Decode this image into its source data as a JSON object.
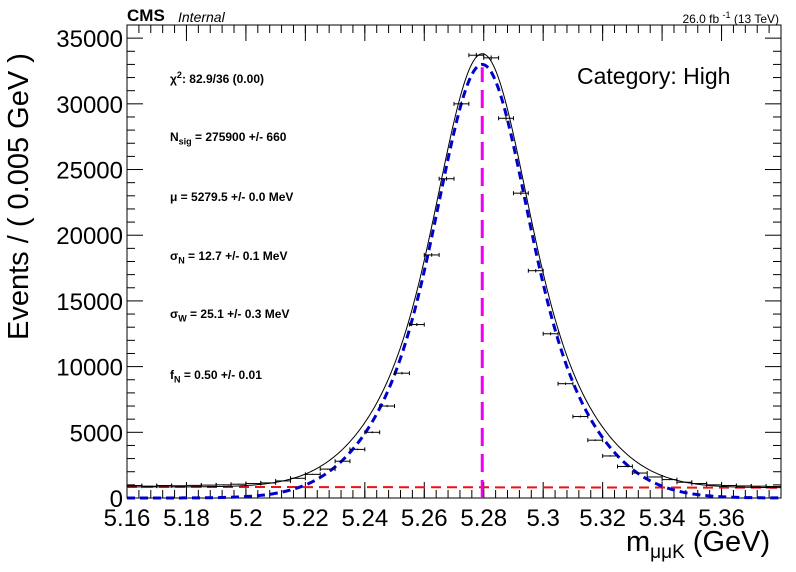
{
  "header": {
    "experiment": "CMS",
    "status": "Internal",
    "luminosity": "26.0 fb",
    "luminosity_exp": "-1",
    "energy": "(13 TeV)"
  },
  "category_label": "Category: High",
  "fit_params": {
    "chi2_symbol": "χ",
    "chi2_sup": "2",
    "chi2_value": ": 82.9/36 (0.00)",
    "nsig_main": "N",
    "nsig_sub": "sig",
    "nsig_value": " = 275900 +/- 660",
    "mu_text": "μ = 5279.5 +/- 0.0 MeV",
    "sigman_main": "σ",
    "sigman_sub": "N",
    "sigman_value": " = 12.7 +/- 0.1 MeV",
    "sigmaw_main": "σ",
    "sigmaw_sub": "W",
    "sigmaw_value": " = 25.1 +/- 0.3 MeV",
    "fn_main": "f",
    "fn_sub": "N",
    "fn_value": " = 0.50 +/- 0.01"
  },
  "chart_data": {
    "type": "line",
    "xlabel_main": "m",
    "xlabel_sub": "μμK",
    "xlabel_unit": " (GeV)",
    "ylabel": "Events / ( 0.005 GeV )",
    "xlim": [
      5.16,
      5.38
    ],
    "ylim": [
      0,
      36000
    ],
    "x_ticks": [
      "5.16",
      "5.18",
      "5.2",
      "5.22",
      "5.24",
      "5.26",
      "5.28",
      "5.3",
      "5.32",
      "5.34",
      "5.36"
    ],
    "x_tick_values": [
      5.16,
      5.18,
      5.2,
      5.22,
      5.24,
      5.26,
      5.28,
      5.3,
      5.32,
      5.34,
      5.36
    ],
    "y_ticks": [
      "0",
      "5000",
      "10000",
      "15000",
      "20000",
      "25000",
      "30000",
      "35000"
    ],
    "y_tick_values": [
      0,
      5000,
      10000,
      15000,
      20000,
      25000,
      30000,
      35000
    ],
    "grid": false,
    "data_points": {
      "name": "Data",
      "x": [
        5.1625,
        5.1675,
        5.1725,
        5.1775,
        5.1825,
        5.1875,
        5.1925,
        5.1975,
        5.2025,
        5.2075,
        5.2125,
        5.2175,
        5.2225,
        5.2275,
        5.2325,
        5.2375,
        5.2425,
        5.2475,
        5.2525,
        5.2575,
        5.2625,
        5.2675,
        5.2725,
        5.2775,
        5.2825,
        5.2875,
        5.2925,
        5.2975,
        5.3025,
        5.3075,
        5.3125,
        5.3175,
        5.3225,
        5.3275,
        5.3325,
        5.3375,
        5.3425,
        5.3475,
        5.3525,
        5.3575,
        5.3625,
        5.3675,
        5.3725,
        5.3775
      ],
      "y": [
        950,
        900,
        950,
        930,
        960,
        980,
        1000,
        1050,
        1100,
        1150,
        1300,
        1500,
        1800,
        2200,
        2800,
        3700,
        5000,
        7000,
        9500,
        13200,
        18500,
        24300,
        30000,
        33700,
        33500,
        28900,
        23200,
        17300,
        12500,
        8700,
        6200,
        4400,
        3200,
        2400,
        1900,
        1600,
        1400,
        1200,
        1100,
        1000,
        950,
        920,
        900,
        880
      ],
      "xerr": 0.0025,
      "yerr_scale": 1.0
    },
    "series": [
      {
        "name": "",
        "role": "total_fit",
        "color": "#000000",
        "style": "solid"
      },
      {
        "name": "",
        "role": "signal",
        "color": "#0000cc",
        "style": "dashed"
      },
      {
        "name": "",
        "role": "background",
        "color": "#ee1111",
        "style": "dashed"
      },
      {
        "name": "",
        "role": "mean_marker",
        "color": "#ee00ee",
        "style": "dashed",
        "x": 5.2795
      }
    ],
    "model": {
      "mu": 5.2795,
      "sigma_n": 0.0127,
      "sigma_w": 0.0251,
      "f_n": 0.5,
      "peak_signal": 33000,
      "background_level": 850,
      "background_slope": -300
    }
  }
}
